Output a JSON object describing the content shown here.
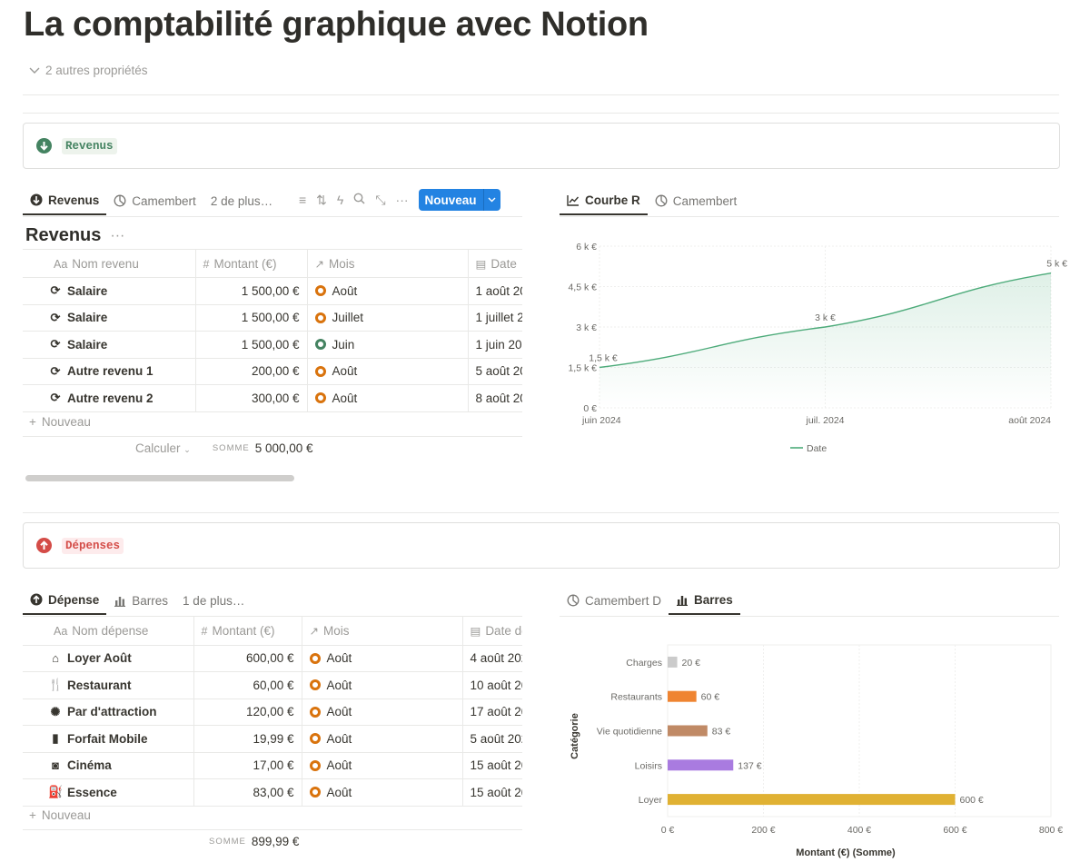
{
  "page": {
    "title": "La comptabilité graphique avec Notion",
    "properties_toggle": "2 autres propriétés"
  },
  "revenus_callout": {
    "tag": "Revenus",
    "icon": "arrow-down-circle-icon",
    "color": "#448361"
  },
  "depenses_callout": {
    "tag": "Dépenses",
    "icon": "arrow-up-circle-icon",
    "color": "#d44c47"
  },
  "revenus_view": {
    "tabs": [
      "Revenus",
      "Camembert",
      "2 de plus…"
    ],
    "new_button": "Nouveau",
    "db_title": "Revenus",
    "columns": [
      "Nom revenu",
      "Montant (€)",
      "Mois",
      "Date"
    ],
    "rows": [
      {
        "name": "Salaire",
        "amount": "1 500,00 €",
        "month": "Août",
        "date": "1 août 20",
        "status": "orange"
      },
      {
        "name": "Salaire",
        "amount": "1 500,00 €",
        "month": "Juillet",
        "date": "1 juillet 2",
        "status": "orange"
      },
      {
        "name": "Salaire",
        "amount": "1 500,00 €",
        "month": "Juin",
        "date": "1 juin 202",
        "status": "green"
      },
      {
        "name": "Autre revenu 1",
        "amount": "200,00 €",
        "month": "Août",
        "date": "5 août 20",
        "status": "orange"
      },
      {
        "name": "Autre revenu 2",
        "amount": "300,00 €",
        "month": "Août",
        "date": "8 août 20",
        "status": "orange"
      }
    ],
    "new_row": "Nouveau",
    "calc_label": "Calculer",
    "sum_label": "SOMME",
    "sum_value": "5 000,00 €"
  },
  "revenus_chart_tabs": [
    "Courbe R",
    "Camembert"
  ],
  "depenses_view": {
    "tabs": [
      "Dépense",
      "Barres",
      "1 de plus…"
    ],
    "columns": [
      "Nom dépense",
      "Montant (€)",
      "Mois",
      "Date de"
    ],
    "rows": [
      {
        "name": "Loyer Août",
        "amount": "600,00 €",
        "month": "Août",
        "date": "4 août 202",
        "icon": "house-icon"
      },
      {
        "name": "Restaurant",
        "amount": "60,00 €",
        "month": "Août",
        "date": "10 août 20",
        "icon": "restaurant-icon"
      },
      {
        "name": "Par d'attraction",
        "amount": "120,00 €",
        "month": "Août",
        "date": "17 août 20",
        "icon": "ferris-wheel-icon"
      },
      {
        "name": "Forfait Mobile",
        "amount": "19,99 €",
        "month": "Août",
        "date": "5 août 202",
        "icon": "phone-icon"
      },
      {
        "name": "Cinéma",
        "amount": "17,00 €",
        "month": "Août",
        "date": "15 août 20",
        "icon": "camera-icon"
      },
      {
        "name": "Essence",
        "amount": "83,00 €",
        "month": "Août",
        "date": "15 août 20",
        "icon": "fuel-icon"
      }
    ],
    "new_row": "Nouveau",
    "sum_label": "SOMME",
    "sum_value": "899,99 €"
  },
  "depenses_chart_tabs": [
    "Camembert D",
    "Barres"
  ],
  "chart_data": [
    {
      "type": "area",
      "x": [
        "juin 2024",
        "juil. 2024",
        "août 2024"
      ],
      "series": [
        {
          "name": "Date",
          "values": [
            1500,
            3000,
            5000
          ],
          "labels": [
            "1,5 k €",
            "3 k €",
            "5 k €"
          ]
        }
      ],
      "yticks": [
        "0 €",
        "1,5 k €",
        "3 k €",
        "4,5 k €",
        "6 k €"
      ],
      "ylim": [
        0,
        6000
      ],
      "grid": true,
      "legend": "bottom",
      "color": "#4dab7a"
    },
    {
      "type": "bar",
      "orientation": "horizontal",
      "categories": [
        "Charges",
        "Restaurants",
        "Vie quotidienne",
        "Loisirs",
        "Loyer"
      ],
      "values": [
        20,
        60,
        83,
        137,
        600
      ],
      "value_labels": [
        "20 €",
        "60 €",
        "83 €",
        "137 €",
        "600 €"
      ],
      "colors": [
        "#cbcbcb",
        "#ef8431",
        "#c08a66",
        "#a97be0",
        "#e0b133"
      ],
      "xticks": [
        "0 €",
        "200 €",
        "400 €",
        "600 €",
        "800 €"
      ],
      "xlim": [
        0,
        800
      ],
      "xlabel": "Montant (€) (Somme)",
      "ylabel": "Catégorie",
      "grid": true
    }
  ]
}
